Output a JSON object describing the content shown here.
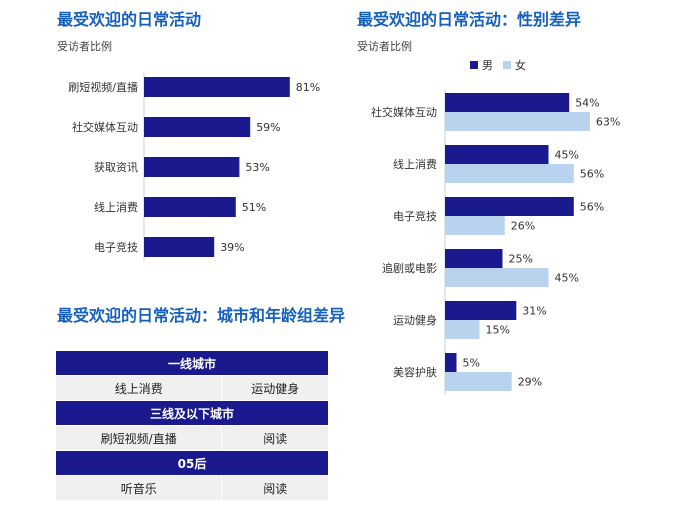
{
  "colors": {
    "navy": "#1a1a8e",
    "light_blue": "#b9d3ee",
    "title_blue": "#1560BD",
    "table_header": "#1a1a8e",
    "table_row": "#f0f0f0"
  },
  "chart_data": [
    {
      "type": "bar",
      "orientation": "horizontal",
      "title": "最受欢迎的日常活动",
      "subtitle": "受访者比例",
      "categories": [
        "刷短视频/直播",
        "社交媒体互动",
        "获取资讯",
        "线上消费",
        "电子竞技"
      ],
      "values": [
        81,
        59,
        53,
        51,
        39
      ],
      "value_labels": [
        "81%",
        "59%",
        "53%",
        "51%",
        "39%"
      ],
      "xlim": [
        0,
        100
      ],
      "grid": false
    },
    {
      "type": "bar",
      "orientation": "horizontal",
      "title": "最受欢迎的日常活动：性别差异",
      "subtitle": "受访者比例",
      "categories": [
        "社交媒体互动",
        "线上消费",
        "电子竞技",
        "追剧或电影",
        "运动健身",
        "美容护肤"
      ],
      "series": [
        {
          "name": "男",
          "values": [
            54,
            45,
            56,
            25,
            31,
            5
          ],
          "value_labels": [
            "54%",
            "45%",
            "56%",
            "25%",
            "31%",
            "5%"
          ]
        },
        {
          "name": "女",
          "values": [
            63,
            56,
            26,
            45,
            15,
            29
          ],
          "value_labels": [
            "63%",
            "56%",
            "26%",
            "45%",
            "15%",
            "29%"
          ]
        }
      ],
      "legend": "top-right",
      "xlim": [
        0,
        100
      ],
      "grid": false
    },
    {
      "type": "table",
      "title": "最受欢迎的日常活动：城市和年龄组差异",
      "groups": [
        {
          "header": "一线城市",
          "items": [
            "线上消费",
            "运动健身"
          ]
        },
        {
          "header": "三线及以下城市",
          "items": [
            "刷短视频/直播",
            "阅读"
          ]
        },
        {
          "header": "05后",
          "items": [
            "听音乐",
            "阅读"
          ]
        }
      ]
    }
  ]
}
